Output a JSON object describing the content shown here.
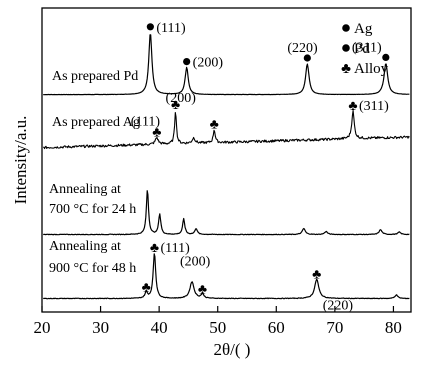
{
  "chart_data": {
    "type": "line",
    "xlabel": "2θ/( )",
    "ylabel": "Intensity/a.u.",
    "xlim": [
      20,
      83
    ],
    "x_ticks": [
      20,
      30,
      40,
      50,
      60,
      70,
      80
    ],
    "y_ticks_shown": false,
    "grid": false,
    "legend": {
      "placement": "top-right",
      "entries": [
        {
          "marker": "circle",
          "label": "Ag"
        },
        {
          "marker": "circle",
          "label": "Pd"
        },
        {
          "marker": "club",
          "label": "Alloy"
        }
      ]
    },
    "series": [
      {
        "name": "As prepared Pd",
        "baseline": 0.9,
        "noise": 0.02,
        "peaks": [
          {
            "x": 38.5,
            "height": 10.3,
            "width": 0.32
          },
          {
            "x": 44.7,
            "height": 4.5,
            "width": 0.32
          },
          {
            "x": 65.3,
            "height": 5.1,
            "width": 0.35
          },
          {
            "x": 78.7,
            "height": 5.2,
            "width": 0.38
          }
        ],
        "annotations": [
          {
            "x": 38.5,
            "marker": "circle",
            "text": "(111)"
          },
          {
            "x": 44.7,
            "marker": "circle",
            "text": "(200)"
          },
          {
            "x": 65.3,
            "marker": "circle",
            "text": "(220)"
          },
          {
            "x": 78.7,
            "marker": "circle",
            "text": "(311)"
          }
        ]
      },
      {
        "name": "As prepared Ag",
        "baseline": 0.4,
        "slope": 0.028,
        "noise": 0.2,
        "peaks": [
          {
            "x": 39.6,
            "height": 1.1,
            "width": 0.3
          },
          {
            "x": 42.8,
            "height": 5.6,
            "width": 0.18
          },
          {
            "x": 45.9,
            "height": 0.9,
            "width": 0.3
          },
          {
            "x": 49.4,
            "height": 2.2,
            "width": 0.2
          },
          {
            "x": 73.1,
            "height": 4.6,
            "width": 0.25
          }
        ],
        "annotations": [
          {
            "x": 39.6,
            "marker": "club",
            "text": "(111)"
          },
          {
            "x": 42.8,
            "marker": "club",
            "text": "(200)"
          },
          {
            "x": 49.4,
            "marker": "club",
            "text": ""
          },
          {
            "x": 73.1,
            "marker": "club",
            "text": "(311)"
          }
        ]
      },
      {
        "name": "Annealing at 700 °C for 24 h",
        "baseline": 0.25,
        "noise": 0.05,
        "peaks": [
          {
            "x": 38.0,
            "height": 7.5,
            "width": 0.22
          },
          {
            "x": 40.1,
            "height": 3.4,
            "width": 0.22
          },
          {
            "x": 44.2,
            "height": 2.6,
            "width": 0.22
          },
          {
            "x": 46.3,
            "height": 1.0,
            "width": 0.25
          },
          {
            "x": 64.7,
            "height": 1.0,
            "width": 0.3
          },
          {
            "x": 68.5,
            "height": 0.5,
            "width": 0.3
          },
          {
            "x": 77.8,
            "height": 0.8,
            "width": 0.3
          },
          {
            "x": 81.0,
            "height": 0.4,
            "width": 0.3
          }
        ],
        "annotations": []
      },
      {
        "name": "Annealing at 900 °C for 48 h",
        "baseline": 0.25,
        "noise": 0.05,
        "peaks": [
          {
            "x": 37.8,
            "height": 1.0,
            "width": 0.25
          },
          {
            "x": 39.2,
            "height": 7.6,
            "width": 0.26
          },
          {
            "x": 45.6,
            "height": 2.8,
            "width": 0.42
          },
          {
            "x": 47.4,
            "height": 0.7,
            "width": 0.3
          },
          {
            "x": 66.9,
            "height": 3.2,
            "width": 0.42
          },
          {
            "x": 80.5,
            "height": 0.6,
            "width": 0.3
          }
        ],
        "annotations": [
          {
            "x": 37.8,
            "marker": "club",
            "text": ""
          },
          {
            "x": 39.2,
            "marker": "club",
            "text": "(111)"
          },
          {
            "x": 45.6,
            "marker": "",
            "text": "(200)"
          },
          {
            "x": 47.4,
            "marker": "club",
            "text": ""
          },
          {
            "x": 66.9,
            "marker": "club",
            "text": "(220)"
          }
        ]
      }
    ]
  }
}
